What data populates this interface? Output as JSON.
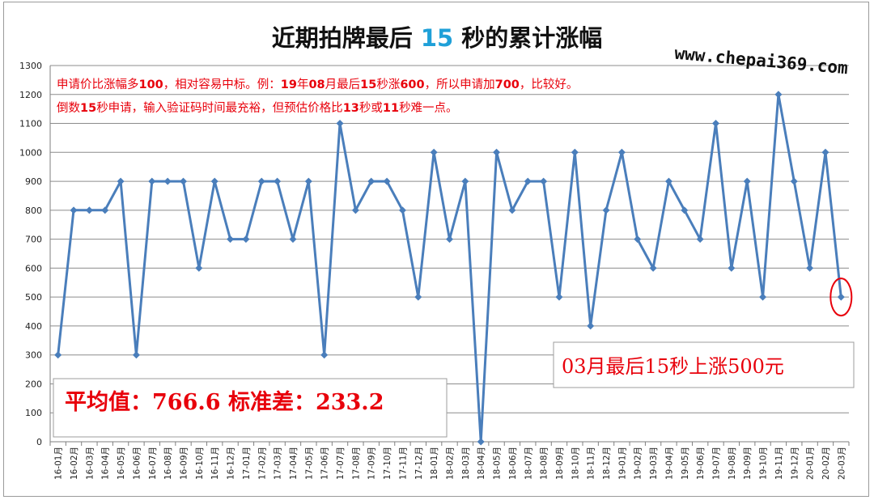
{
  "title": {
    "prefix": "近期拍牌最后 ",
    "number": "15",
    "suffix": " 秒的累计涨幅"
  },
  "watermark": "www.chepai369.com",
  "notes": [
    {
      "segments": [
        {
          "t": "申请价比涨幅多",
          "b": false
        },
        {
          "t": "100",
          "b": true
        },
        {
          "t": "，相对容易中标。例：",
          "b": false
        },
        {
          "t": "19",
          "b": true
        },
        {
          "t": "年",
          "b": false
        },
        {
          "t": "08",
          "b": true
        },
        {
          "t": "月最后",
          "b": false
        },
        {
          "t": "15",
          "b": true
        },
        {
          "t": "秒涨",
          "b": false
        },
        {
          "t": "600",
          "b": true
        },
        {
          "t": "，所以申请加",
          "b": false
        },
        {
          "t": "700",
          "b": true
        },
        {
          "t": "，比较好。",
          "b": false
        }
      ]
    },
    {
      "segments": [
        {
          "t": "倒数",
          "b": false
        },
        {
          "t": "15",
          "b": true
        },
        {
          "t": "秒申请，输入验证码时间最充裕，但预估价格比",
          "b": false
        },
        {
          "t": "13",
          "b": true
        },
        {
          "t": "秒或",
          "b": false
        },
        {
          "t": "11",
          "b": true
        },
        {
          "t": "秒难一点。",
          "b": false
        }
      ]
    }
  ],
  "stats_box": "平均值：766.6 标准差：233.2",
  "callout": "03月最后15秒上涨500元",
  "colors": {
    "line": "#4a7ebb",
    "note": "#e8000b",
    "title_number": "#1fa0d8",
    "callout_text": "#e8000b",
    "highlight_circle": "#e8000b"
  },
  "chart_data": {
    "type": "line",
    "ylim": [
      0,
      1300
    ],
    "yticks": [
      "0",
      "100",
      "200",
      "300",
      "400",
      "500",
      "600",
      "700",
      "800",
      "900",
      "1000",
      "1100",
      "1200",
      "1300"
    ],
    "grid": true,
    "categories": [
      "16-01月",
      "16-02月",
      "16-03月",
      "16-04月",
      "16-05月",
      "16-06月",
      "16-07月",
      "16-08月",
      "16-09月",
      "16-10月",
      "16-11月",
      "16-12月",
      "17-01月",
      "17-02月",
      "17-03月",
      "17-04月",
      "17-05月",
      "17-06月",
      "17-07月",
      "17-08月",
      "17-09月",
      "17-10月",
      "17-11月",
      "17-12月",
      "18-01月",
      "18-02月",
      "18-03月",
      "18-04月",
      "18-05月",
      "18-06月",
      "18-07月",
      "18-08月",
      "18-09月",
      "18-10月",
      "18-11月",
      "18-12月",
      "19-01月",
      "19-02月",
      "19-03月",
      "19-04月",
      "19-05月",
      "19-06月",
      "19-07月",
      "19-08月",
      "19-09月",
      "19-10月",
      "19-11月",
      "19-12月",
      "20-01月",
      "20-02月",
      "20-03月"
    ],
    "values": [
      300,
      800,
      800,
      800,
      900,
      300,
      900,
      900,
      900,
      600,
      900,
      700,
      700,
      900,
      900,
      700,
      900,
      300,
      1100,
      800,
      900,
      900,
      800,
      500,
      1000,
      700,
      900,
      0,
      1000,
      800,
      900,
      900,
      500,
      1000,
      400,
      800,
      1000,
      700,
      600,
      900,
      800,
      700,
      1100,
      600,
      900,
      500,
      1200,
      900,
      600,
      1000,
      500
    ]
  }
}
